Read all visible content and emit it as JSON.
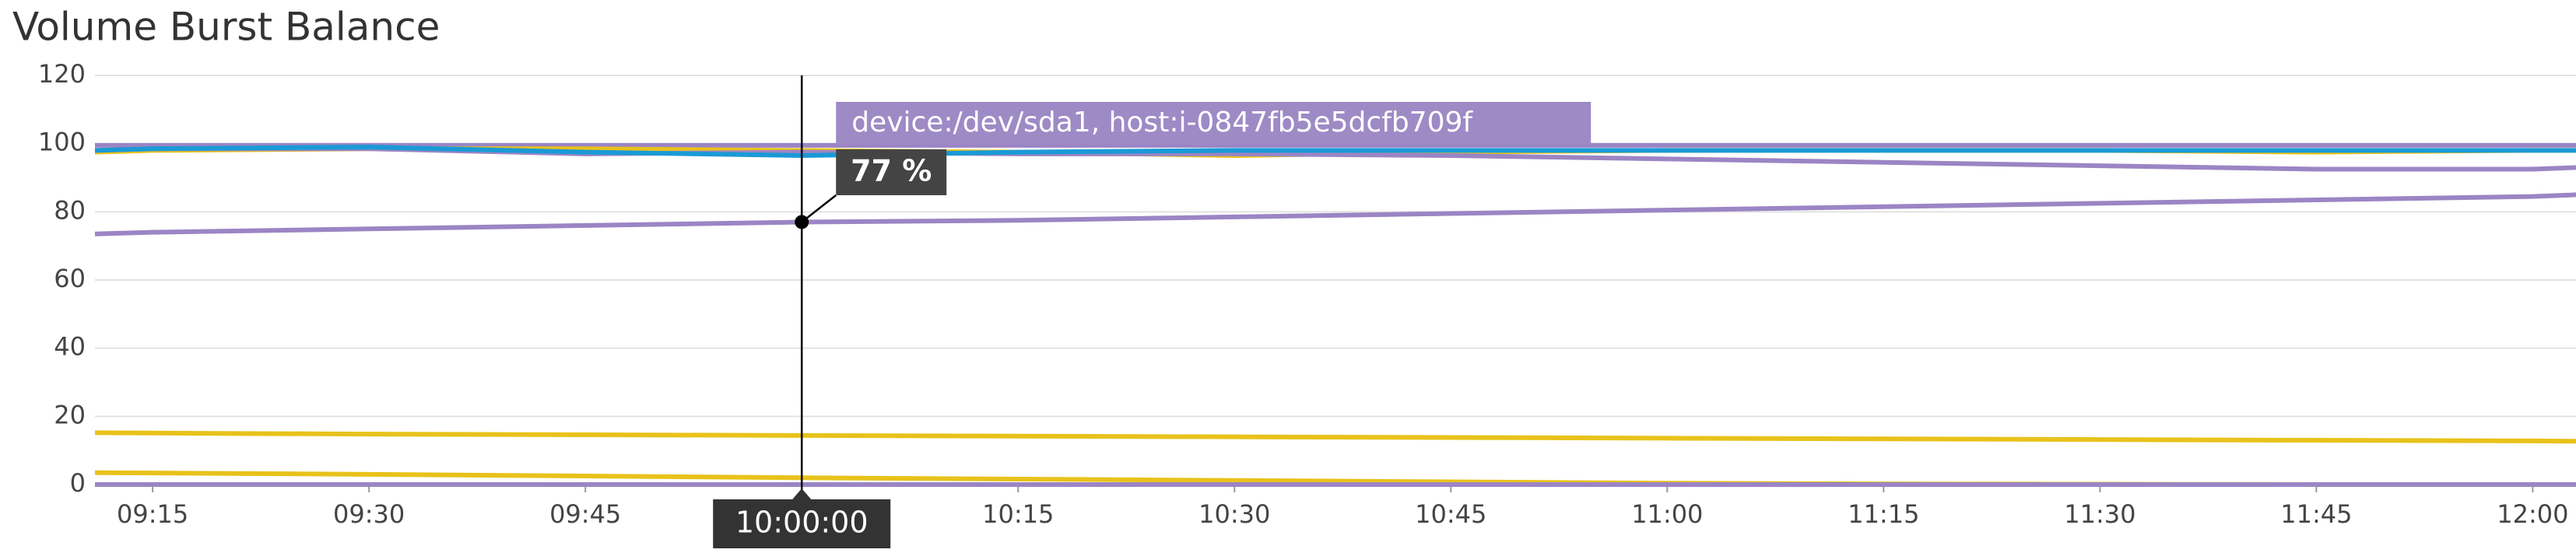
{
  "chart_data": {
    "type": "line",
    "title": "Volume Burst Balance",
    "x": [
      "09:11",
      "09:15",
      "09:30",
      "09:45",
      "10:00",
      "10:15",
      "10:30",
      "10:45",
      "11:00",
      "11:15",
      "11:30",
      "11:45",
      "12:00",
      "12:03"
    ],
    "xlim": [
      "09:11",
      "12:03"
    ],
    "xticks": [
      "09:15",
      "09:30",
      "09:45",
      "10:00",
      "10:15",
      "10:30",
      "10:45",
      "11:00",
      "11:15",
      "11:30",
      "11:45",
      "12:00"
    ],
    "ylim": [
      0,
      120
    ],
    "yticks": [
      0,
      20,
      40,
      60,
      80,
      100,
      120
    ],
    "grid": true,
    "series": [
      {
        "color": "#9b85c4",
        "values": [
          99.5,
          99.5,
          99.5,
          99.5,
          99.5,
          99.5,
          99.5,
          99.5,
          99.5,
          99.5,
          99.5,
          99.5,
          99.5,
          99.5
        ]
      },
      {
        "color": "#e8c21b",
        "values": [
          97.5,
          98,
          98.5,
          98.5,
          98,
          97.5,
          96.5,
          97.5,
          98,
          98,
          98,
          97.5,
          98,
          98
        ]
      },
      {
        "color": "#9b85c4",
        "values": [
          98,
          98.5,
          98.5,
          97,
          97.5,
          97,
          97,
          96.5,
          95.5,
          94.5,
          93.5,
          92.5,
          92.5,
          93
        ]
      },
      {
        "color": "#1a9ad6",
        "values": [
          98,
          98.5,
          99,
          97.5,
          96.5,
          97.5,
          98,
          98,
          98,
          98,
          98,
          98,
          98,
          98
        ]
      },
      {
        "color": "#9b85c4",
        "values": [
          73.5,
          74,
          75,
          76,
          77,
          77.5,
          78.5,
          79.5,
          80.5,
          81.5,
          82.5,
          83.5,
          84.5,
          85
        ]
      },
      {
        "color": "#e8c21b",
        "values": [
          15.2,
          15.1,
          14.8,
          14.6,
          14.4,
          14.2,
          14,
          13.8,
          13.6,
          13.4,
          13.2,
          13,
          12.8,
          12.7
        ]
      },
      {
        "color": "#e8c21b",
        "values": [
          3.5,
          3.4,
          3,
          2.5,
          2,
          1.6,
          1.2,
          0.8,
          0.4,
          0.2,
          0.1,
          0,
          0,
          0
        ]
      },
      {
        "color": "#9b85c4",
        "values": [
          0,
          0,
          0,
          0,
          0,
          0,
          0,
          0,
          0,
          0,
          0,
          0,
          0,
          0
        ]
      }
    ],
    "tooltip": {
      "label": "device:/dev/sda1, host:i-0847fb5e5dcfb709f",
      "x": "10:00",
      "time_label": "10:00:00",
      "value": 77,
      "value_label": "77 %",
      "color": "#9e8ac5"
    }
  }
}
